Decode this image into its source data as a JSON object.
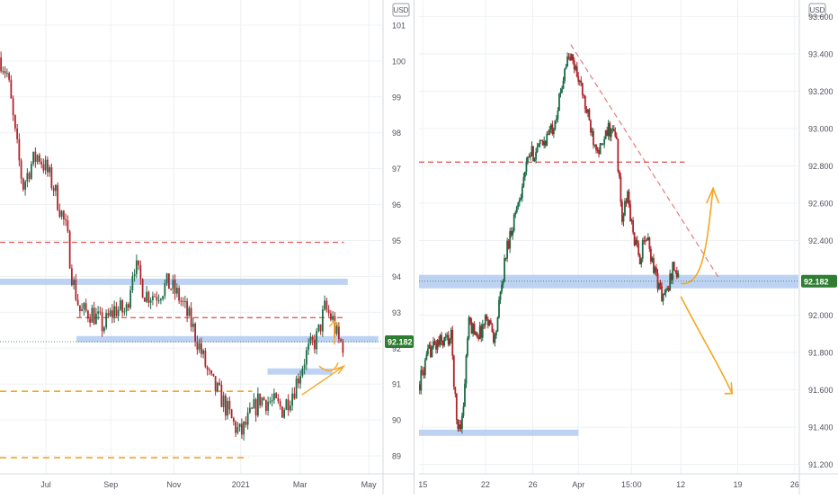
{
  "colors": {
    "up": "#1d6b46",
    "down": "#b1242b",
    "grid": "#eef0f3",
    "axis_text": "#50535e",
    "price_badge": "#2e7d32",
    "zone_blue": "#a8c4f0",
    "red_dash": "#e25b5b",
    "orange": "#f5a623"
  },
  "chart_data": [
    {
      "type": "candlestick",
      "panel": "left",
      "currency_label": "USD",
      "y_ticks": [
        "89",
        "90",
        "91",
        "92",
        "93",
        "94",
        "95",
        "96",
        "97",
        "98",
        "99",
        "100",
        "101"
      ],
      "ylim": [
        88.5,
        101.5
      ],
      "x_ticks": [
        {
          "label": "Jul",
          "t": 0.12
        },
        {
          "label": "Sep",
          "t": 0.29
        },
        {
          "label": "Nov",
          "t": 0.455
        },
        {
          "label": "2021",
          "t": 0.63
        },
        {
          "label": "Mar",
          "t": 0.785
        },
        {
          "label": "May",
          "t": 0.965
        }
      ],
      "last_price": "92.182",
      "close_path": [
        [
          0,
          100.1
        ],
        [
          0.02,
          99.6
        ],
        [
          0.04,
          97.9
        ],
        [
          0.06,
          96.5
        ],
        [
          0.08,
          97.1
        ],
        [
          0.1,
          97.4
        ],
        [
          0.12,
          97.0
        ],
        [
          0.14,
          96.5
        ],
        [
          0.16,
          95.8
        ],
        [
          0.175,
          95.2
        ],
        [
          0.19,
          93.9
        ],
        [
          0.21,
          93.0
        ],
        [
          0.24,
          93.0
        ],
        [
          0.27,
          92.6
        ],
        [
          0.3,
          93.1
        ],
        [
          0.33,
          93.0
        ],
        [
          0.35,
          94.4
        ],
        [
          0.38,
          93.5
        ],
        [
          0.41,
          93.5
        ],
        [
          0.44,
          93.8
        ],
        [
          0.47,
          93.4
        ],
        [
          0.5,
          92.7
        ],
        [
          0.52,
          92.1
        ],
        [
          0.55,
          91.1
        ],
        [
          0.58,
          90.6
        ],
        [
          0.61,
          89.9
        ],
        [
          0.63,
          89.6
        ],
        [
          0.65,
          90.0
        ],
        [
          0.68,
          90.6
        ],
        [
          0.71,
          90.5
        ],
        [
          0.74,
          90.3
        ],
        [
          0.77,
          90.9
        ],
        [
          0.8,
          91.8
        ],
        [
          0.83,
          92.3
        ],
        [
          0.85,
          93.1
        ],
        [
          0.87,
          92.8
        ],
        [
          0.885,
          92.2
        ],
        [
          0.9,
          92.1
        ]
      ],
      "levels": [
        {
          "kind": "red-dash",
          "price": 94.95,
          "t0": 0.0,
          "t1": 0.9
        },
        {
          "kind": "red-dash",
          "price": 92.85,
          "t0": 0.2,
          "t1": 0.9
        },
        {
          "kind": "blue-band",
          "price": 93.85,
          "t0": 0.0,
          "t1": 0.91
        },
        {
          "kind": "blue-band",
          "price": 92.25,
          "t0": 0.2,
          "t1": 0.99
        },
        {
          "kind": "blue-band",
          "price": 91.35,
          "t0": 0.7,
          "t1": 0.87
        },
        {
          "kind": "orange-dash",
          "price": 90.8,
          "t0": 0.0,
          "t1": 0.66
        },
        {
          "kind": "orange-dash",
          "price": 88.95,
          "t0": 0.0,
          "t1": 0.65
        }
      ]
    },
    {
      "type": "candlestick",
      "panel": "right",
      "currency_label": "USD",
      "y_ticks": [
        "91.200",
        "91.400",
        "91.600",
        "91.800",
        "92.000",
        "92.200",
        "92.400",
        "92.600",
        "92.800",
        "93.000",
        "93.200",
        "93.400",
        "93.600"
      ],
      "ylim": [
        91.15,
        93.65
      ],
      "x_ticks": [
        {
          "label": "15",
          "t": 0.01
        },
        {
          "label": "22",
          "t": 0.175
        },
        {
          "label": "26",
          "t": 0.3
        },
        {
          "label": "Apr",
          "t": 0.42
        },
        {
          "label": "15:00",
          "t": 0.56
        },
        {
          "label": "12",
          "t": 0.69
        },
        {
          "label": "19",
          "t": 0.84
        },
        {
          "label": "26",
          "t": 0.99
        }
      ],
      "last_price": "92.182",
      "close_path": [
        [
          0.0,
          91.63
        ],
        [
          0.03,
          91.82
        ],
        [
          0.06,
          91.86
        ],
        [
          0.085,
          91.88
        ],
        [
          0.1,
          91.4
        ],
        [
          0.115,
          91.45
        ],
        [
          0.13,
          91.95
        ],
        [
          0.16,
          91.9
        ],
        [
          0.18,
          92.0
        ],
        [
          0.2,
          91.87
        ],
        [
          0.23,
          92.35
        ],
        [
          0.26,
          92.6
        ],
        [
          0.29,
          92.85
        ],
        [
          0.32,
          92.9
        ],
        [
          0.35,
          93.0
        ],
        [
          0.37,
          93.15
        ],
        [
          0.385,
          93.35
        ],
        [
          0.4,
          93.38
        ],
        [
          0.42,
          93.28
        ],
        [
          0.44,
          93.1
        ],
        [
          0.46,
          92.95
        ],
        [
          0.48,
          92.88
        ],
        [
          0.5,
          93.0
        ],
        [
          0.52,
          92.95
        ],
        [
          0.535,
          92.5
        ],
        [
          0.55,
          92.65
        ],
        [
          0.56,
          92.48
        ],
        [
          0.58,
          92.3
        ],
        [
          0.6,
          92.42
        ],
        [
          0.62,
          92.25
        ],
        [
          0.64,
          92.1
        ],
        [
          0.655,
          92.12
        ],
        [
          0.67,
          92.28
        ],
        [
          0.685,
          92.18
        ]
      ],
      "levels": [
        {
          "kind": "red-dash",
          "price": 92.82,
          "t0": 0.0,
          "t1": 0.7
        },
        {
          "kind": "blue-band",
          "price": 92.18,
          "t0": 0.0,
          "t1": 1.0
        },
        {
          "kind": "blue-band",
          "price": 91.37,
          "t0": 0.0,
          "t1": 0.42
        }
      ]
    }
  ]
}
